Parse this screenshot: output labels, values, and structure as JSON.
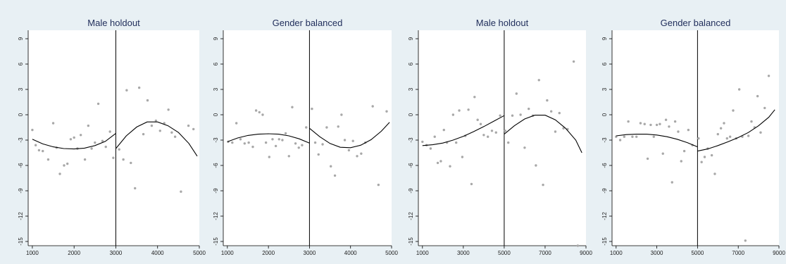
{
  "colors": {
    "background": "#e8f0f4",
    "plot_background": "#ffffff",
    "points": "#a8a8a8",
    "fit_line": "#000000",
    "cutoff_line": "#000000",
    "title_text": "#1f2d5a"
  },
  "chart_data": [
    {
      "type": "scatter",
      "title": "Male holdout",
      "xlabel": "",
      "ylabel": "",
      "xlim": [
        900,
        5000
      ],
      "ylim": [
        -15.5,
        10
      ],
      "xticks": [
        1000,
        2000,
        3000,
        4000,
        5000
      ],
      "yticks": [
        9,
        6,
        3,
        0,
        -3,
        -6,
        -9,
        -12,
        -15
      ],
      "cutoff": 3000,
      "grid": false,
      "points": [
        [
          1000,
          -1.8
        ],
        [
          1080,
          -3.6
        ],
        [
          1160,
          -4.2
        ],
        [
          1250,
          -4.3
        ],
        [
          1380,
          -5.3
        ],
        [
          1500,
          -1.0
        ],
        [
          1580,
          -3.9
        ],
        [
          1660,
          -7.0
        ],
        [
          1760,
          -6.0
        ],
        [
          1840,
          -5.8
        ],
        [
          1920,
          -2.9
        ],
        [
          2000,
          -2.7
        ],
        [
          2080,
          -4.0
        ],
        [
          2160,
          -2.4
        ],
        [
          2260,
          -5.3
        ],
        [
          2340,
          -1.3
        ],
        [
          2420,
          -4.0
        ],
        [
          2500,
          -3.3
        ],
        [
          2580,
          1.3
        ],
        [
          2680,
          -3.1
        ],
        [
          2760,
          -3.8
        ],
        [
          2860,
          -2.0
        ],
        [
          2940,
          -5.1
        ]
      ],
      "points_right": [
        [
          3080,
          -4.1
        ],
        [
          3180,
          -5.3
        ],
        [
          3260,
          2.9
        ],
        [
          3360,
          -5.7
        ],
        [
          3460,
          -8.7
        ],
        [
          3560,
          3.2
        ],
        [
          3660,
          -2.3
        ],
        [
          3760,
          1.7
        ],
        [
          3860,
          -1.3
        ],
        [
          3960,
          -0.7
        ],
        [
          4060,
          -1.9
        ],
        [
          4160,
          -1.0
        ],
        [
          4260,
          0.6
        ],
        [
          4340,
          -2.1
        ],
        [
          4420,
          -2.6
        ],
        [
          4560,
          -9.1
        ],
        [
          4740,
          -1.3
        ],
        [
          4860,
          -1.7
        ]
      ],
      "fit_left": {
        "x": [
          1000,
          1250,
          1500,
          1750,
          2000,
          2250,
          2500,
          2750,
          3000
        ],
        "y": [
          -2.9,
          -3.45,
          -3.8,
          -4.0,
          -4.05,
          -3.95,
          -3.65,
          -3.15,
          -2.2
        ]
      },
      "fit_right": {
        "x": [
          3000,
          3250,
          3500,
          3750,
          4000,
          4250,
          4500,
          4750,
          4950
        ],
        "y": [
          -4.0,
          -2.5,
          -1.45,
          -0.85,
          -0.85,
          -1.3,
          -2.1,
          -3.4,
          -4.9
        ]
      }
    },
    {
      "type": "scatter",
      "title": "Gender balanced",
      "xlabel": "",
      "ylabel": "",
      "xlim": [
        900,
        5000
      ],
      "ylim": [
        -15.5,
        10
      ],
      "xticks": [
        1000,
        2000,
        3000,
        4000,
        5000
      ],
      "yticks": [
        9,
        6,
        3,
        0,
        -3,
        -6,
        -9,
        -12,
        -15
      ],
      "cutoff": 3000,
      "grid": false,
      "points": [
        [
          1020,
          -3.2
        ],
        [
          1120,
          -3.3
        ],
        [
          1220,
          -1.0
        ],
        [
          1320,
          -2.9
        ],
        [
          1420,
          -3.4
        ],
        [
          1520,
          -3.3
        ],
        [
          1620,
          -3.8
        ],
        [
          1700,
          0.5
        ],
        [
          1780,
          0.3
        ],
        [
          1860,
          0.0
        ],
        [
          1940,
          -3.3
        ],
        [
          2020,
          -5.0
        ],
        [
          2100,
          -2.9
        ],
        [
          2180,
          -3.7
        ],
        [
          2260,
          -2.9
        ],
        [
          2340,
          -3.0
        ],
        [
          2420,
          -2.2
        ],
        [
          2500,
          -4.9
        ],
        [
          2580,
          0.9
        ],
        [
          2660,
          -3.4
        ],
        [
          2740,
          -3.9
        ],
        [
          2820,
          -3.6
        ],
        [
          2920,
          -1.5
        ]
      ],
      "points_right": [
        [
          3060,
          0.7
        ],
        [
          3140,
          -3.3
        ],
        [
          3220,
          -4.7
        ],
        [
          3320,
          -3.5
        ],
        [
          3420,
          -1.5
        ],
        [
          3520,
          -6.1
        ],
        [
          3620,
          -7.2
        ],
        [
          3700,
          -1.4
        ],
        [
          3780,
          0.0
        ],
        [
          3860,
          -3.0
        ],
        [
          3960,
          -4.2
        ],
        [
          4060,
          -3.1
        ],
        [
          4160,
          -4.9
        ],
        [
          4260,
          -4.6
        ],
        [
          4360,
          -3.3
        ],
        [
          4540,
          1.0
        ],
        [
          4680,
          -8.3
        ],
        [
          4880,
          0.4
        ]
      ],
      "fit_left": {
        "x": [
          1000,
          1250,
          1500,
          1750,
          2000,
          2250,
          2500,
          2750,
          3000
        ],
        "y": [
          -3.2,
          -2.75,
          -2.45,
          -2.3,
          -2.25,
          -2.3,
          -2.5,
          -2.85,
          -3.35
        ]
      },
      "fit_right": {
        "x": [
          3000,
          3250,
          3500,
          3750,
          4000,
          4250,
          4500,
          4750,
          4950
        ],
        "y": [
          -1.6,
          -2.6,
          -3.4,
          -3.85,
          -3.9,
          -3.6,
          -2.95,
          -1.95,
          -0.9
        ]
      }
    },
    {
      "type": "scatter",
      "title": "Male holdout",
      "xlabel": "",
      "ylabel": "",
      "xlim": [
        800,
        9000
      ],
      "ylim": [
        -15.5,
        10
      ],
      "xticks": [
        1000,
        3000,
        5000,
        7000,
        9000
      ],
      "yticks": [
        9,
        6,
        3,
        0,
        -3,
        -6,
        -9,
        -12,
        -15
      ],
      "cutoff": 5000,
      "grid": false,
      "points": [
        [
          1000,
          -3.2
        ],
        [
          1200,
          -3.6
        ],
        [
          1400,
          -4.0
        ],
        [
          1600,
          -2.6
        ],
        [
          1750,
          -5.7
        ],
        [
          1900,
          -5.5
        ],
        [
          2050,
          -1.8
        ],
        [
          2200,
          -3.3
        ],
        [
          2350,
          -6.1
        ],
        [
          2500,
          0.0
        ],
        [
          2650,
          -3.3
        ],
        [
          2800,
          0.5
        ],
        [
          2950,
          -5.0
        ],
        [
          3100,
          -2.5
        ],
        [
          3250,
          0.6
        ],
        [
          3400,
          -8.2
        ],
        [
          3550,
          2.1
        ],
        [
          3700,
          -0.6
        ],
        [
          3850,
          -1.1
        ],
        [
          4000,
          -2.4
        ],
        [
          4200,
          -2.6
        ],
        [
          4400,
          -1.9
        ],
        [
          4600,
          -2.1
        ],
        [
          4800,
          -0.1
        ]
      ],
      "points_right": [
        [
          5050,
          -1.9
        ],
        [
          5200,
          -3.3
        ],
        [
          5400,
          -0.1
        ],
        [
          5600,
          2.5
        ],
        [
          5800,
          0.0
        ],
        [
          6000,
          -3.9
        ],
        [
          6200,
          0.7
        ],
        [
          6400,
          -0.1
        ],
        [
          6550,
          -6.0
        ],
        [
          6700,
          4.1
        ],
        [
          6900,
          -8.3
        ],
        [
          7100,
          1.7
        ],
        [
          7300,
          0.4
        ],
        [
          7500,
          -2.0
        ],
        [
          7700,
          0.2
        ],
        [
          7900,
          -1.6
        ],
        [
          8100,
          -1.7
        ],
        [
          8400,
          6.3
        ],
        [
          8600,
          -15.5
        ]
      ],
      "fit_left": {
        "x": [
          1000,
          1500,
          2000,
          2500,
          3000,
          3500,
          4000,
          4500,
          5000
        ],
        "y": [
          -3.65,
          -3.55,
          -3.35,
          -3.0,
          -2.55,
          -2.0,
          -1.4,
          -0.75,
          -0.1
        ]
      },
      "fit_right": {
        "x": [
          5000,
          5500,
          6000,
          6500,
          7000,
          7500,
          8000,
          8500,
          8800
        ],
        "y": [
          -2.3,
          -1.3,
          -0.5,
          -0.05,
          -0.05,
          -0.6,
          -1.6,
          -3.0,
          -4.5
        ]
      }
    },
    {
      "type": "scatter",
      "title": "Gender balanced",
      "xlabel": "",
      "ylabel": "",
      "xlim": [
        800,
        9000
      ],
      "ylim": [
        -15.5,
        10
      ],
      "xticks": [
        1000,
        3000,
        5000,
        7000,
        9000
      ],
      "yticks": [
        9,
        6,
        3,
        0,
        -3,
        -6,
        -9,
        -12,
        -15
      ],
      "cutoff": 5000,
      "grid": false,
      "points": [
        [
          1000,
          -2.6
        ],
        [
          1200,
          -3.0
        ],
        [
          1400,
          -2.6
        ],
        [
          1600,
          -0.8
        ],
        [
          1800,
          -2.6
        ],
        [
          2000,
          -2.6
        ],
        [
          2200,
          -1.0
        ],
        [
          2400,
          -1.1
        ],
        [
          2550,
          -5.2
        ],
        [
          2700,
          -1.2
        ],
        [
          2850,
          -2.6
        ],
        [
          3000,
          -1.2
        ],
        [
          3150,
          -1.1
        ],
        [
          3300,
          -4.6
        ],
        [
          3450,
          -0.6
        ],
        [
          3600,
          -1.4
        ],
        [
          3750,
          -8.0
        ],
        [
          3900,
          -0.8
        ],
        [
          4050,
          -2.0
        ],
        [
          4200,
          -5.5
        ],
        [
          4350,
          -4.3
        ],
        [
          4550,
          -1.8
        ],
        [
          4750,
          -3.6
        ]
      ],
      "points_right": [
        [
          5050,
          -2.8
        ],
        [
          5200,
          -5.6
        ],
        [
          5350,
          -5.0
        ],
        [
          5500,
          -4.0
        ],
        [
          5700,
          -4.8
        ],
        [
          5850,
          -7.0
        ],
        [
          6000,
          -2.3
        ],
        [
          6150,
          -1.6
        ],
        [
          6300,
          -1.0
        ],
        [
          6450,
          -2.8
        ],
        [
          6600,
          -2.6
        ],
        [
          6750,
          0.5
        ],
        [
          6900,
          -2.8
        ],
        [
          7050,
          3.0
        ],
        [
          7200,
          -2.6
        ],
        [
          7350,
          -14.9
        ],
        [
          7500,
          -2.5
        ],
        [
          7650,
          -0.8
        ],
        [
          7800,
          -1.5
        ],
        [
          7950,
          2.2
        ],
        [
          8100,
          -2.1
        ],
        [
          8300,
          0.8
        ],
        [
          8500,
          4.6
        ]
      ],
      "fit_left": {
        "x": [
          1000,
          1500,
          2000,
          2500,
          3000,
          3500,
          4000,
          4500,
          5000
        ],
        "y": [
          -2.5,
          -2.35,
          -2.3,
          -2.3,
          -2.4,
          -2.6,
          -2.9,
          -3.3,
          -3.8
        ]
      },
      "fit_right": {
        "x": [
          5000,
          5500,
          6000,
          6500,
          7000,
          7500,
          8000,
          8500,
          8800
        ],
        "y": [
          -4.3,
          -4.05,
          -3.65,
          -3.2,
          -2.7,
          -2.1,
          -1.3,
          -0.3,
          0.6
        ]
      }
    }
  ]
}
